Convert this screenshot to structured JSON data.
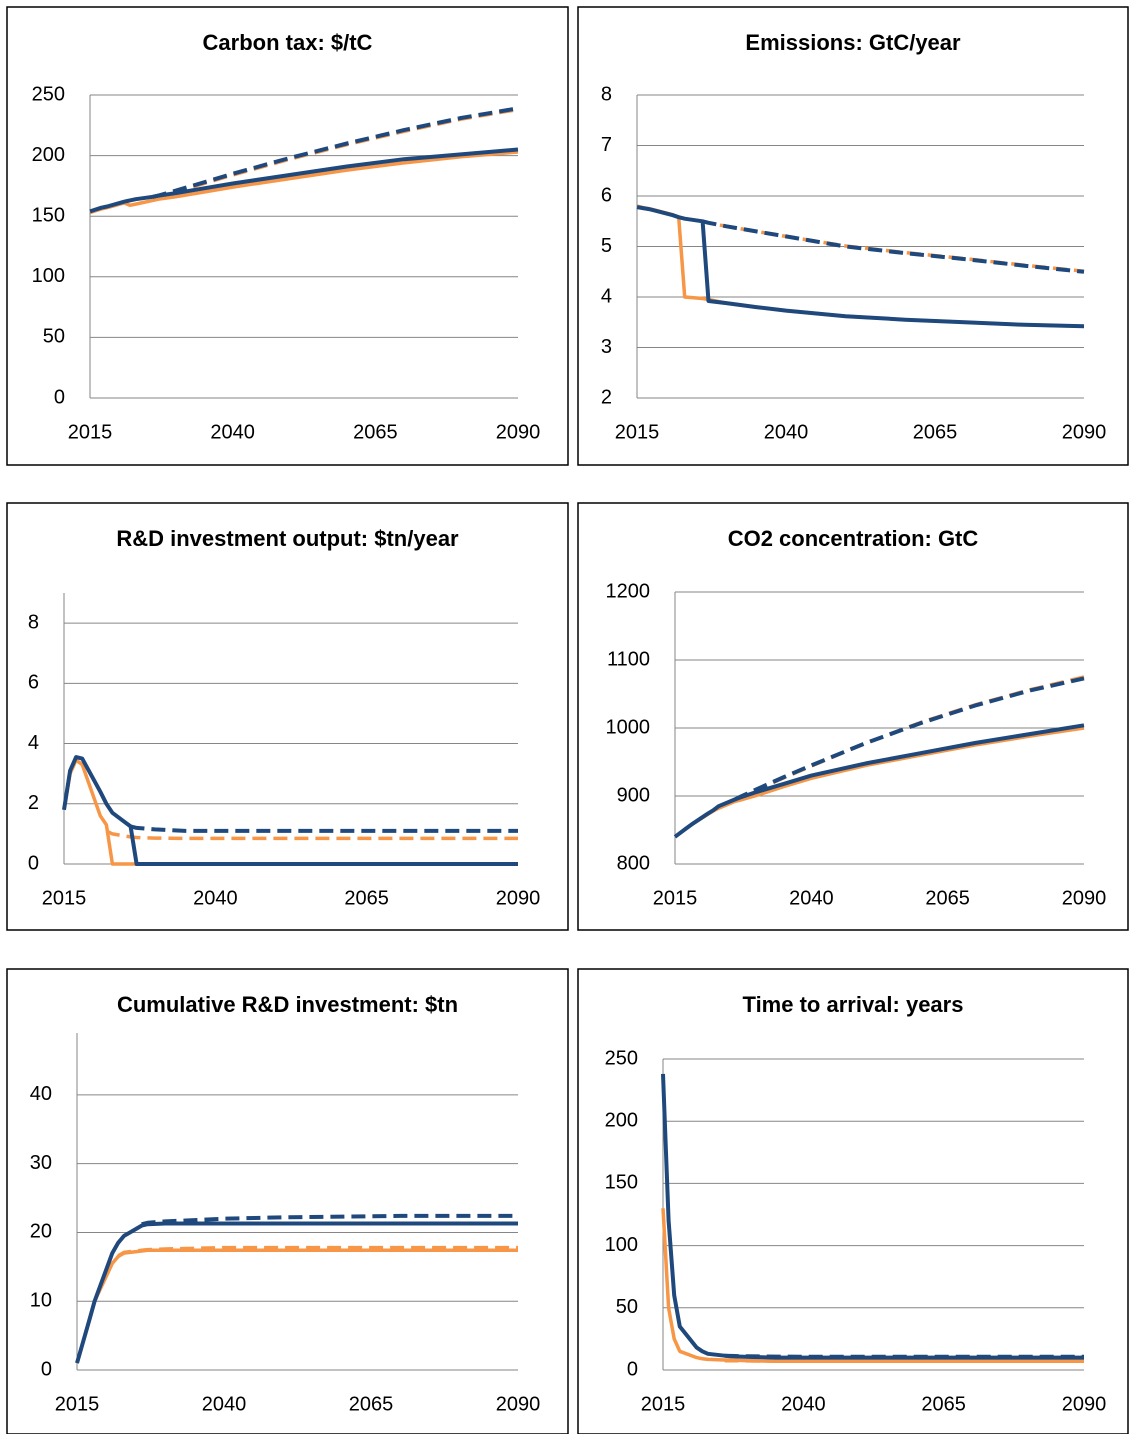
{
  "chart_data": [
    {
      "type": "line",
      "title": "Carbon tax: $/tC",
      "x": [
        2015,
        2016,
        2017,
        2018,
        2021,
        2022,
        2023,
        2026,
        2027,
        2030,
        2035,
        2040,
        2050,
        2060,
        2070,
        2080,
        2090
      ],
      "xlim": [
        2015,
        2090
      ],
      "xticks": [
        2015,
        2040,
        2065,
        2090
      ],
      "ylim": [
        0,
        250
      ],
      "yticks": [
        0,
        50,
        100,
        150,
        200,
        250
      ],
      "grid": true,
      "series": [
        {
          "color": "#f79646",
          "dashed": false,
          "values": [
            153,
            154.5,
            156,
            157,
            161,
            159,
            160,
            163,
            164,
            166,
            170,
            174,
            181,
            188,
            194,
            199,
            203
          ]
        },
        {
          "color": "#f79646",
          "dashed": true,
          "values": [
            null,
            null,
            null,
            null,
            null,
            null,
            null,
            165,
            166,
            170,
            177,
            184,
            197,
            209,
            220,
            230,
            238
          ]
        },
        {
          "color": "#1f497d",
          "dashed": true,
          "values": [
            null,
            null,
            null,
            null,
            null,
            null,
            null,
            166,
            167,
            171,
            178,
            185,
            198,
            210,
            221,
            231,
            239
          ]
        },
        {
          "color": "#1f497d",
          "dashed": false,
          "values": [
            154,
            155.5,
            157,
            158,
            162,
            163,
            164,
            166,
            167,
            169,
            173,
            177,
            184,
            191,
            197,
            201,
            205
          ]
        }
      ]
    },
    {
      "type": "line",
      "title": "Emissions: GtC/year",
      "x": [
        2015,
        2016,
        2017,
        2018,
        2021,
        2022,
        2023,
        2026,
        2027,
        2030,
        2035,
        2040,
        2050,
        2060,
        2070,
        2080,
        2090
      ],
      "xlim": [
        2015,
        2090
      ],
      "xticks": [
        2015,
        2040,
        2065,
        2090
      ],
      "ylim": [
        2,
        8
      ],
      "yticks": [
        2,
        3,
        4,
        5,
        6,
        7,
        8
      ],
      "grid": true,
      "series": [
        {
          "color": "#f79646",
          "dashed": false,
          "values": [
            5.8,
            5.77,
            5.75,
            5.72,
            5.63,
            5.58,
            4.0,
            3.97,
            3.95,
            3.88,
            3.8,
            3.73,
            3.62,
            3.55,
            3.5,
            3.45,
            3.42
          ]
        },
        {
          "color": "#f79646",
          "dashed": true,
          "values": [
            null,
            null,
            null,
            null,
            null,
            5.58,
            5.55,
            5.5,
            5.47,
            5.4,
            5.3,
            5.2,
            5.01,
            4.88,
            4.76,
            4.63,
            4.51
          ]
        },
        {
          "color": "#1f497d",
          "dashed": true,
          "values": [
            null,
            null,
            null,
            null,
            null,
            null,
            null,
            5.5,
            5.47,
            5.4,
            5.3,
            5.2,
            5.0,
            4.87,
            4.75,
            4.62,
            4.5
          ]
        },
        {
          "color": "#1f497d",
          "dashed": false,
          "values": [
            5.78,
            5.76,
            5.74,
            5.71,
            5.62,
            5.58,
            5.55,
            5.5,
            3.92,
            3.88,
            3.8,
            3.73,
            3.62,
            3.55,
            3.5,
            3.45,
            3.42
          ]
        }
      ]
    },
    {
      "type": "line",
      "title": "R&D investment output: $tn/year",
      "x": [
        2015,
        2016,
        2017,
        2018,
        2021,
        2022,
        2023,
        2026,
        2027,
        2030,
        2035,
        2040,
        2050,
        2060,
        2070,
        2080,
        2090
      ],
      "xlim": [
        2015,
        2090
      ],
      "xticks": [
        2015,
        2040,
        2065,
        2090
      ],
      "ylim": [
        0,
        9
      ],
      "yticks": [
        0,
        2,
        4,
        6,
        8
      ],
      "grid": true,
      "series": [
        {
          "color": "#f79646",
          "dashed": false,
          "values": [
            1.8,
            3.0,
            3.45,
            3.3,
            1.6,
            1.3,
            0,
            0,
            0,
            0,
            0,
            0,
            0,
            0,
            0,
            0,
            0
          ]
        },
        {
          "color": "#f79646",
          "dashed": true,
          "values": [
            null,
            null,
            null,
            null,
            null,
            1.1,
            1.0,
            0.9,
            0.88,
            0.86,
            0.85,
            0.85,
            0.85,
            0.85,
            0.85,
            0.85,
            0.85
          ]
        },
        {
          "color": "#1f497d",
          "dashed": true,
          "values": [
            null,
            null,
            null,
            null,
            null,
            null,
            null,
            1.25,
            1.2,
            1.15,
            1.1,
            1.1,
            1.1,
            1.1,
            1.1,
            1.1,
            1.1
          ]
        },
        {
          "color": "#1f497d",
          "dashed": false,
          "values": [
            1.8,
            3.1,
            3.55,
            3.5,
            2.4,
            2.0,
            1.7,
            1.25,
            0,
            0,
            0,
            0,
            0,
            0,
            0,
            0,
            0
          ]
        }
      ]
    },
    {
      "type": "line",
      "title": "CO2 concentration: GtC",
      "x": [
        2015,
        2016,
        2017,
        2018,
        2021,
        2022,
        2023,
        2026,
        2027,
        2030,
        2035,
        2040,
        2050,
        2060,
        2070,
        2080,
        2090
      ],
      "xlim": [
        2015,
        2090
      ],
      "xticks": [
        2015,
        2040,
        2065,
        2090
      ],
      "ylim": [
        800,
        1200
      ],
      "yticks": [
        800,
        900,
        1000,
        1100,
        1200
      ],
      "grid": true,
      "series": [
        {
          "color": "#f79646",
          "dashed": false,
          "values": [
            840,
            846,
            852,
            858,
            873,
            878,
            882,
            892,
            894,
            901,
            914,
            926,
            945,
            960,
            975,
            988,
            1000
          ]
        },
        {
          "color": "#f79646",
          "dashed": true,
          "values": [
            null,
            null,
            null,
            null,
            null,
            null,
            null,
            894,
            898,
            909,
            927,
            944,
            978,
            1008,
            1034,
            1056,
            1075
          ]
        },
        {
          "color": "#1f497d",
          "dashed": true,
          "values": [
            null,
            null,
            null,
            null,
            null,
            null,
            null,
            895,
            899,
            910,
            928,
            945,
            978,
            1007,
            1033,
            1055,
            1073
          ]
        },
        {
          "color": "#1f497d",
          "dashed": false,
          "values": [
            840,
            846,
            852,
            858,
            874,
            879,
            885,
            895,
            898,
            906,
            918,
            930,
            948,
            963,
            978,
            991,
            1004
          ]
        }
      ]
    },
    {
      "type": "line",
      "title": "Cumulative R&D investment: $tn",
      "x": [
        2015,
        2016,
        2017,
        2018,
        2021,
        2022,
        2023,
        2026,
        2027,
        2030,
        2035,
        2040,
        2050,
        2060,
        2070,
        2080,
        2090
      ],
      "xlim": [
        2015,
        2090
      ],
      "xticks": [
        2015,
        2040,
        2065,
        2090
      ],
      "ylim": [
        0,
        49
      ],
      "yticks": [
        0,
        10,
        20,
        30,
        40
      ],
      "grid": true,
      "series": [
        {
          "color": "#f79646",
          "dashed": false,
          "values": [
            1,
            4,
            7,
            10,
            15.5,
            16.5,
            17,
            17.3,
            17.4,
            17.4,
            17.4,
            17.4,
            17.4,
            17.4,
            17.4,
            17.4,
            17.4
          ]
        },
        {
          "color": "#f79646",
          "dashed": true,
          "values": [
            null,
            null,
            null,
            null,
            null,
            16.6,
            17.1,
            17.4,
            17.5,
            17.6,
            17.7,
            17.8,
            17.8,
            17.8,
            17.8,
            17.8,
            17.8
          ]
        },
        {
          "color": "#1f497d",
          "dashed": true,
          "values": [
            null,
            null,
            null,
            null,
            null,
            null,
            null,
            21.2,
            21.4,
            21.6,
            21.8,
            22,
            22.2,
            22.3,
            22.4,
            22.4,
            22.4
          ]
        },
        {
          "color": "#1f497d",
          "dashed": false,
          "values": [
            1,
            4,
            7,
            10,
            17,
            18.5,
            19.5,
            21,
            21.2,
            21.3,
            21.3,
            21.3,
            21.3,
            21.3,
            21.3,
            21.3,
            21.3
          ]
        }
      ]
    },
    {
      "type": "line",
      "title": "Time to arrival: years",
      "x": [
        2015,
        2016,
        2017,
        2018,
        2021,
        2022,
        2023,
        2026,
        2027,
        2030,
        2035,
        2040,
        2050,
        2060,
        2070,
        2080,
        2090
      ],
      "xlim": [
        2015,
        2090
      ],
      "xticks": [
        2015,
        2040,
        2065,
        2090
      ],
      "ylim": [
        0,
        250
      ],
      "yticks": [
        0,
        50,
        100,
        150,
        200,
        250
      ],
      "grid": true,
      "series": [
        {
          "color": "#f79646",
          "dashed": false,
          "values": [
            130,
            50,
            25,
            15,
            10,
            9,
            8.5,
            8,
            8,
            7.5,
            7,
            7,
            7,
            7,
            7,
            7,
            7
          ]
        },
        {
          "color": "#f79646",
          "dashed": true,
          "values": [
            null,
            null,
            null,
            null,
            null,
            null,
            null,
            7.5,
            7.5,
            7.3,
            7.2,
            7.1,
            7,
            7,
            7,
            7,
            7
          ]
        },
        {
          "color": "#1f497d",
          "dashed": true,
          "values": [
            null,
            null,
            null,
            null,
            null,
            null,
            null,
            11.5,
            11.3,
            11,
            10.8,
            10.7,
            10.7,
            10.7,
            10.7,
            10.7,
            10.7
          ]
        },
        {
          "color": "#1f497d",
          "dashed": false,
          "values": [
            238,
            120,
            60,
            35,
            18,
            15,
            13,
            11.5,
            11,
            10.5,
            10,
            10,
            10,
            10,
            10,
            10,
            10
          ]
        }
      ]
    }
  ]
}
